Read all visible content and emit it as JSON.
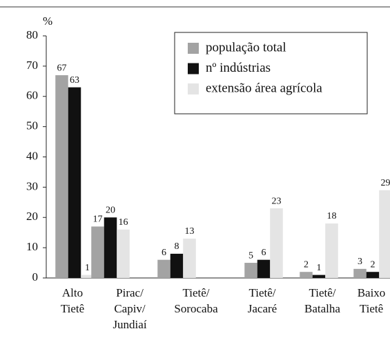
{
  "chart_data": {
    "type": "bar",
    "y_label": "%",
    "categories": [
      [
        "Alto",
        "Tietê"
      ],
      [
        "Pirac/",
        "Capiv/",
        "Jundiaí"
      ],
      [
        "Tietê/",
        "Sorocaba"
      ],
      [
        "Tietê/",
        "Jacaré"
      ],
      [
        "Tietê/",
        "Batalha"
      ],
      [
        "Baixo",
        "Tietê"
      ]
    ],
    "series": [
      {
        "name": "população total",
        "color": "#a3a3a3",
        "values": [
          67,
          17,
          6,
          5,
          2,
          3
        ]
      },
      {
        "name": "nº indústrias",
        "color": "#111111",
        "values": [
          63,
          20,
          8,
          6,
          1,
          2
        ]
      },
      {
        "name": "extensão área agrícola",
        "color": "#e4e4e4",
        "values": [
          1,
          16,
          13,
          23,
          18,
          29
        ]
      }
    ],
    "ylim": [
      0,
      80
    ],
    "yticks": [
      0,
      10,
      20,
      30,
      40,
      50,
      60,
      70,
      80
    ],
    "legend": "upper right"
  }
}
